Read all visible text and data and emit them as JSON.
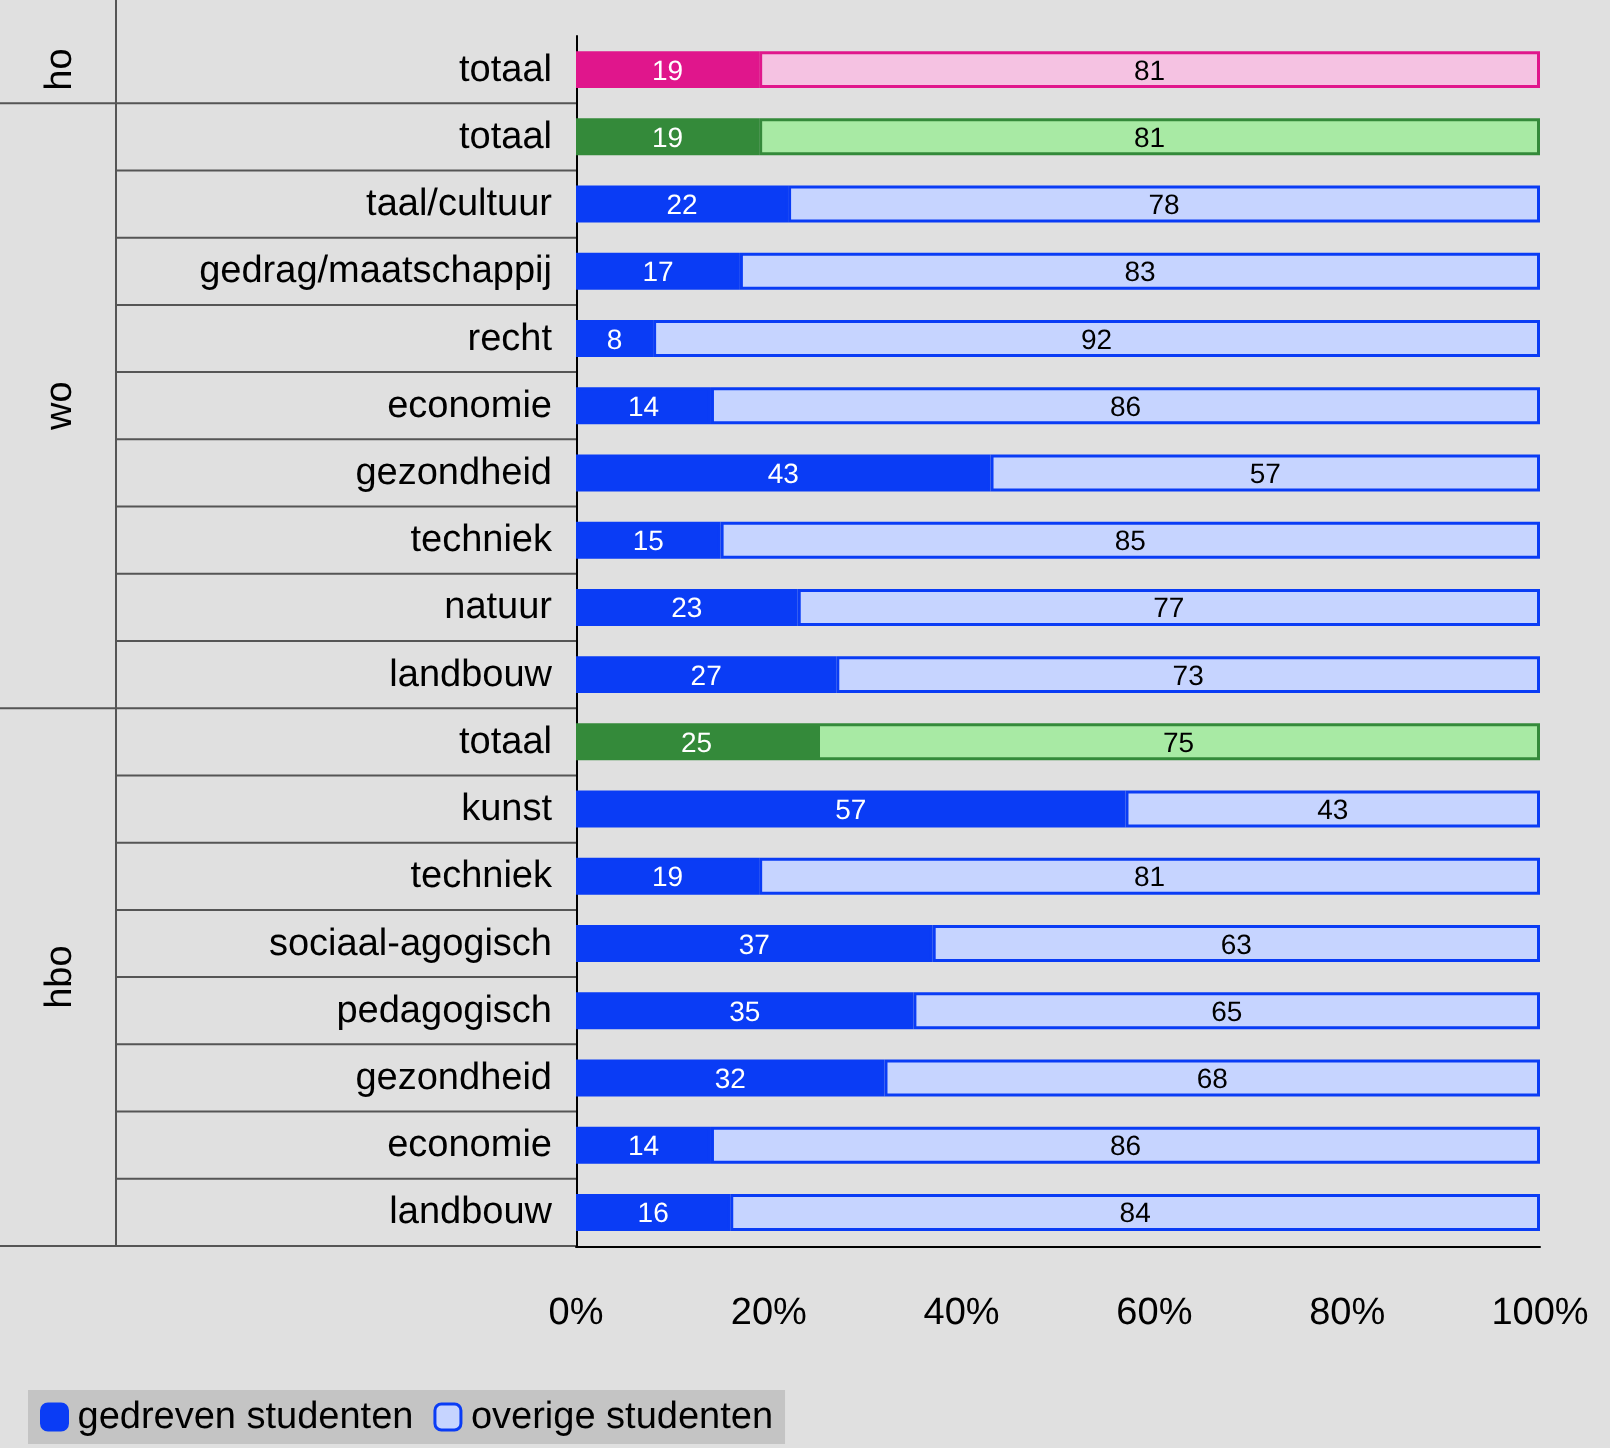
{
  "chart_data": {
    "type": "bar",
    "orientation": "horizontal",
    "stacked": true,
    "data_labels": true,
    "legend": "bottom left",
    "categories": [
      "totaal",
      "totaal",
      "taal/cultuur",
      "gedrag/maatschappij",
      "recht",
      "economie",
      "gezondheid",
      "techniek",
      "natuur",
      "landbouw",
      "totaal",
      "kunst",
      "techniek",
      "sociaal-agogisch",
      "pedagogisch",
      "gezondheid",
      "economie",
      "landbouw"
    ],
    "annotations": [
      "ho",
      "wo",
      "hbo"
    ],
    "xlim": [
      0,
      100
    ],
    "xticks": [
      {
        "value": 0,
        "label": "0%"
      },
      {
        "value": 20,
        "label": "20%"
      },
      {
        "value": 40,
        "label": "40%"
      },
      {
        "value": 60,
        "label": "60%"
      },
      {
        "value": 80,
        "label": "80%"
      },
      {
        "value": 100,
        "label": "100%"
      }
    ],
    "series": [
      {
        "name": "gedreven studenten",
        "color": "#0a3cf5",
        "colors": [
          "#e0168c",
          "#348a3a",
          "#0a3cf5",
          "#0a3cf5",
          "#0a3cf5",
          "#0a3cf5",
          "#0a3cf5",
          "#0a3cf5",
          "#0a3cf5",
          "#0a3cf5",
          "#348a3a",
          "#0a3cf5",
          "#0a3cf5",
          "#0a3cf5",
          "#0a3cf5",
          "#0a3cf5",
          "#0a3cf5",
          "#0a3cf5"
        ],
        "values": [
          19,
          19,
          22,
          17,
          8,
          14,
          43,
          15,
          23,
          27,
          25,
          57,
          19,
          37,
          35,
          32,
          14,
          16
        ]
      },
      {
        "name": "overige studenten",
        "color": "#c6d4ff",
        "colors": [
          "#f5c2e2",
          "#a8eaa4",
          "#c6d4ff",
          "#c6d4ff",
          "#c6d4ff",
          "#c6d4ff",
          "#c6d4ff",
          "#c6d4ff",
          "#c6d4ff",
          "#c6d4ff",
          "#a8eaa4",
          "#c6d4ff",
          "#c6d4ff",
          "#c6d4ff",
          "#c6d4ff",
          "#c6d4ff",
          "#c6d4ff",
          "#c6d4ff"
        ],
        "values": [
          81,
          81,
          78,
          83,
          92,
          86,
          57,
          85,
          77,
          73,
          75,
          43,
          81,
          63,
          65,
          68,
          86,
          84
        ]
      }
    ]
  }
}
